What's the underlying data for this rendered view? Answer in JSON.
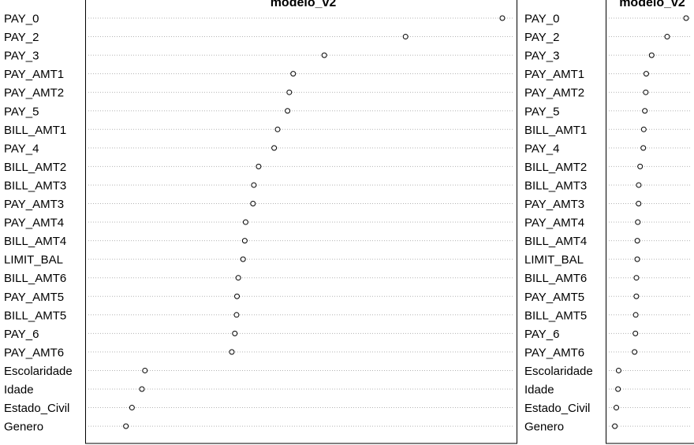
{
  "chart_data": [
    {
      "type": "scatter",
      "title": "modelo_v2",
      "categories": [
        "PAY_0",
        "PAY_2",
        "PAY_3",
        "PAY_AMT1",
        "PAY_AMT2",
        "PAY_5",
        "BILL_AMT1",
        "PAY_4",
        "BILL_AMT2",
        "BILL_AMT3",
        "PAY_AMT3",
        "PAY_AMT4",
        "BILL_AMT4",
        "LIMIT_BAL",
        "BILL_AMT6",
        "PAY_AMT5",
        "BILL_AMT5",
        "PAY_6",
        "PAY_AMT6",
        "Escolaridade",
        "Idade",
        "Estado_Civil",
        "Genero"
      ],
      "values": [
        95.8,
        73.4,
        54.6,
        47.4,
        46.5,
        46.1,
        43.8,
        43.0,
        39.4,
        38.3,
        38.1,
        36.4,
        36.2,
        35.8,
        34.7,
        34.4,
        34.3,
        33.9,
        33.2,
        13.1,
        12.4,
        10.1,
        8.7
      ],
      "xlim": [
        0,
        100
      ],
      "grid": true
    },
    {
      "type": "scatter",
      "title": "modelo_v2",
      "categories": [
        "PAY_0",
        "PAY_2",
        "PAY_3",
        "PAY_AMT1",
        "PAY_AMT2",
        "PAY_5",
        "BILL_AMT1",
        "PAY_4",
        "BILL_AMT2",
        "BILL_AMT3",
        "PAY_AMT3",
        "PAY_AMT4",
        "BILL_AMT4",
        "LIMIT_BAL",
        "BILL_AMT6",
        "PAY_AMT5",
        "BILL_AMT5",
        "PAY_6",
        "PAY_AMT6",
        "Escolaridade",
        "Idade",
        "Estado_Civil",
        "Genero"
      ],
      "values": [
        100.0,
        75.5,
        55.4,
        48.4,
        47.8,
        46.6,
        45.2,
        44.6,
        40.5,
        38.7,
        38.5,
        37.5,
        36.9,
        36.8,
        35.7,
        35.6,
        34.8,
        34.4,
        33.3,
        12.7,
        11.9,
        9.7,
        7.8
      ],
      "xlim": [
        0,
        100
      ],
      "grid": true
    }
  ]
}
